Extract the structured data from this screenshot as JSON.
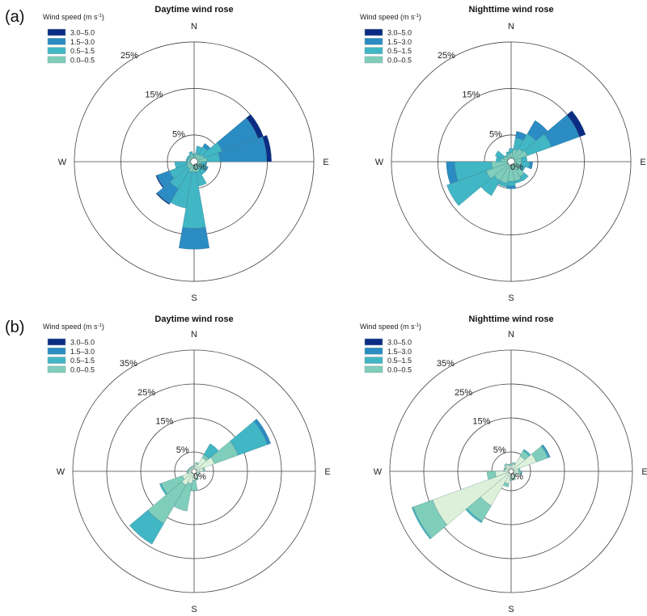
{
  "legend": {
    "title": "Wind speed (m s",
    "title_sup": "-1",
    "title_end": ")",
    "entries": [
      "3.0–5.0",
      "1.5–3.0",
      "0.5–1.5",
      "0.0–0.5"
    ]
  },
  "colors": {
    "unlabeled_inner": "#ddf1da",
    "0.0–0.5": "#7fcdbb",
    "0.5–1.5": "#41b6c4",
    "1.5–3.0": "#2b8cc4",
    "3.0–5.0": "#0c2c84"
  },
  "panels": [
    {
      "label": "(a)"
    },
    {
      "label": "(b)"
    }
  ],
  "chart_data": [
    {
      "panel": "(a)",
      "type": "bar",
      "coordinate": "polar",
      "title": "Daytime wind rose",
      "compass": [
        "N",
        "E",
        "S",
        "W"
      ],
      "rings": [
        5,
        15,
        25
      ],
      "ring_labels": [
        "5%",
        "15%",
        "25%"
      ],
      "center_label": "0%",
      "rmax": 25,
      "directions_deg": [
        0,
        20,
        40,
        60,
        80,
        100,
        120,
        140,
        160,
        180,
        200,
        220,
        240,
        260,
        280,
        300,
        320,
        340
      ],
      "series": [
        {
          "name": "0.0–0.5",
          "values": [
            0.5,
            1.0,
            1.0,
            1.5,
            2.0,
            0.8,
            1.0,
            1.0,
            1.5,
            1.5,
            1.5,
            1.0,
            1.0,
            0.8,
            0.7,
            0.6,
            0.6,
            1.0
          ]
        },
        {
          "name": "0.5–1.5",
          "values": [
            0.5,
            1.7,
            2.0,
            4.2,
            2.8,
            1.0,
            1.3,
            1.5,
            3.1,
            12.1,
            7.9,
            5.0,
            3.9,
            2.6,
            0.3,
            0.4,
            0.4,
            0.5
          ]
        },
        {
          "name": "1.5–3.0",
          "values": [
            0,
            0,
            0.8,
            8.2,
            10.1,
            0.2,
            0.2,
            0,
            0,
            4.5,
            0,
            3.7,
            2.9,
            0,
            0,
            0,
            0,
            0
          ]
        },
        {
          "name": "3.0–5.0",
          "values": [
            0,
            0,
            0,
            1.2,
            1.0,
            0,
            0,
            0,
            0,
            0,
            0,
            0.2,
            0.2,
            0,
            0,
            0,
            0,
            0
          ]
        }
      ]
    },
    {
      "panel": "(a)",
      "type": "bar",
      "coordinate": "polar",
      "title": "Nighttime wind rose",
      "compass": [
        "N",
        "E",
        "S",
        "W"
      ],
      "rings": [
        5,
        15,
        25
      ],
      "ring_labels": [
        "5%",
        "15%",
        "25%"
      ],
      "center_label": "0%",
      "rmax": 25,
      "directions_deg": [
        0,
        20,
        40,
        60,
        80,
        100,
        120,
        140,
        160,
        180,
        200,
        220,
        240,
        260,
        280,
        300,
        320,
        340
      ],
      "series": [
        {
          "name": "0.0–0.5",
          "values": [
            1.2,
            2.0,
            2.5,
            3.0,
            1.5,
            1.5,
            1.5,
            3.0,
            3.5,
            3.5,
            4.0,
            4.0,
            5.0,
            3.5,
            1.5,
            1.0,
            0.7,
            1.0
          ]
        },
        {
          "name": "0.5–1.5",
          "values": [
            0.9,
            2.5,
            3.7,
            5.5,
            1.2,
            1.8,
            1.0,
            1.1,
            0.5,
            1.0,
            0.8,
            3.7,
            9.0,
            7.9,
            1.0,
            1.9,
            0.3,
            0.5
          ]
        },
        {
          "name": "1.5–3.0",
          "values": [
            0,
            1.4,
            3.3,
            6.4,
            0,
            0.6,
            0,
            0,
            0,
            0.6,
            0,
            0,
            0,
            1.8,
            0,
            0,
            0,
            0
          ]
        },
        {
          "name": "3.0–5.0",
          "values": [
            0,
            0,
            0,
            1.4,
            0,
            0,
            0,
            0,
            0,
            0,
            0,
            0,
            0,
            0,
            0,
            0,
            0,
            0
          ]
        }
      ]
    },
    {
      "panel": "(b)",
      "type": "bar",
      "coordinate": "polar",
      "title": "Daytime wind rose",
      "compass": [
        "N",
        "E",
        "S",
        "W"
      ],
      "rings": [
        5,
        15,
        25,
        35
      ],
      "ring_labels": [
        "5%",
        "15%",
        "25%",
        "35%"
      ],
      "center_label": "0%",
      "rmax": 35,
      "directions_deg": [
        0,
        20,
        40,
        60,
        80,
        100,
        120,
        140,
        160,
        180,
        200,
        220,
        240,
        260,
        280,
        300,
        320,
        340
      ],
      "series": [
        {
          "name": "",
          "values": [
            0.6,
            1.5,
            4.0,
            5.7,
            2.0,
            0.8,
            0.8,
            0.8,
            1.5,
            2.0,
            3.0,
            4.0,
            3.0,
            1.0,
            0.8,
            0.6,
            0.6,
            0.6
          ]
        },
        {
          "name": "0.0–0.5",
          "values": [
            0.4,
            0.5,
            1.0,
            7.4,
            0.5,
            0.2,
            0.2,
            0.2,
            0.5,
            3.0,
            8.2,
            13.1,
            6.6,
            0.5,
            0.4,
            0.4,
            0.3,
            0.3
          ]
        },
        {
          "name": "0.5–1.5",
          "values": [
            0,
            0,
            3.7,
            9.2,
            0,
            0,
            0,
            0,
            0,
            0,
            0,
            7.0,
            0.5,
            0,
            0,
            0,
            0,
            0
          ]
        },
        {
          "name": "1.5–3.0",
          "values": [
            0,
            0,
            0,
            1.0,
            0,
            0,
            0,
            0,
            0,
            0,
            0,
            0,
            0,
            0,
            0,
            0,
            0,
            0
          ]
        },
        {
          "name": "3.0–5.0",
          "values": [
            0,
            0,
            0,
            0,
            0,
            0,
            0,
            0,
            0,
            0,
            0,
            0,
            0,
            0,
            0,
            0,
            0,
            0
          ]
        }
      ]
    },
    {
      "panel": "(b)",
      "type": "bar",
      "coordinate": "polar",
      "title": "Nighttime wind rose",
      "compass": [
        "N",
        "E",
        "S",
        "W"
      ],
      "rings": [
        5,
        15,
        25,
        35
      ],
      "ring_labels": [
        "5%",
        "15%",
        "25%",
        "35%"
      ],
      "center_label": "0%",
      "rmax": 35,
      "directions_deg": [
        0,
        20,
        40,
        60,
        80,
        100,
        120,
        140,
        160,
        180,
        200,
        220,
        240,
        260,
        280,
        300,
        320,
        340
      ],
      "series": [
        {
          "name": "",
          "values": [
            1.0,
            1.5,
            4.5,
            7.2,
            1.5,
            1.5,
            0.8,
            1.0,
            1.5,
            1.5,
            3.0,
            11.0,
            23.9,
            4.0,
            1.2,
            1.0,
            1.5,
            1.2
          ]
        },
        {
          "name": "0.0–0.5",
          "values": [
            0.5,
            0.5,
            1.8,
            3.6,
            0.5,
            0.8,
            0.2,
            0.3,
            0.5,
            0.5,
            1.0,
            5.3,
            6.1,
            2.4,
            0.3,
            0.5,
            0.5,
            0.3
          ]
        },
        {
          "name": "0.5–1.5",
          "values": [
            0,
            0,
            0.5,
            0.4,
            0,
            0.2,
            0,
            0,
            0,
            0,
            0,
            0.5,
            0.4,
            0,
            0,
            0,
            0,
            0
          ]
        },
        {
          "name": "1.5–3.0",
          "values": [
            0,
            0,
            0,
            0.3,
            0,
            0,
            0,
            0,
            0,
            0,
            0,
            0,
            0,
            0,
            0,
            0,
            0,
            0
          ]
        },
        {
          "name": "3.0–5.0",
          "values": [
            0,
            0,
            0,
            0,
            0,
            0,
            0,
            0,
            0,
            0,
            0,
            0,
            0,
            0,
            0,
            0,
            0,
            0
          ]
        }
      ]
    }
  ]
}
